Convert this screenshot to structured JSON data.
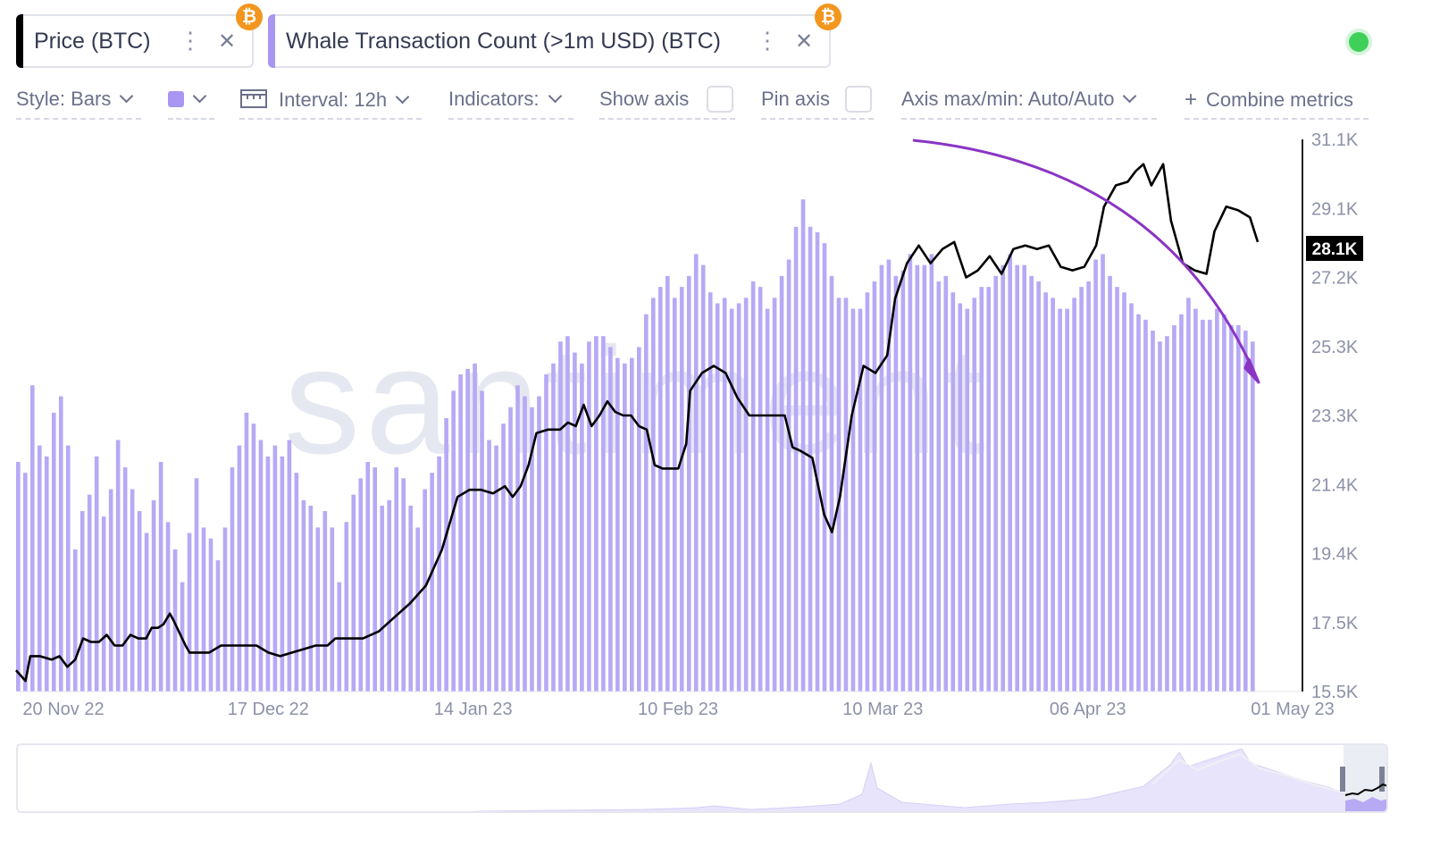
{
  "tabs": [
    {
      "label": "Price (BTC)",
      "color": "#000000"
    },
    {
      "label": "Whale Transaction Count (>1m USD) (BTC)",
      "color": "#a996f2"
    }
  ],
  "toolbar": {
    "style": "Style: Bars",
    "interval": "Interval: 12h",
    "indicators": "Indicators:",
    "show_axis": "Show axis",
    "pin_axis": "Pin axis",
    "axis_maxmin": "Axis max/min: Auto/Auto",
    "combine": "Combine metrics"
  },
  "watermark": "santiment",
  "colors": {
    "bars": "#b8a9f5",
    "price_line": "#000000",
    "arrow": "#8a35c4",
    "status": "#3fd05a"
  },
  "chart_data": {
    "type": "bar",
    "title": "",
    "y_price_ticks": [
      "31.1K",
      "29.1K",
      "27.2K",
      "25.3K",
      "23.3K",
      "21.4K",
      "19.4K",
      "17.5K",
      "15.5K"
    ],
    "y_price_range": [
      15500,
      31100
    ],
    "current_price_label": "28.1K",
    "current_price": 28100,
    "x_tick_labels": [
      "20 Nov 22",
      "17 Dec 22",
      "14 Jan 23",
      "10 Feb 23",
      "10 Mar 23",
      "06 Apr 23",
      "01 May 23"
    ],
    "x_range": [
      "2022-11-14",
      "2023-04-28"
    ],
    "series": [
      {
        "name": "Whale Transaction Count (>1m USD) (BTC)",
        "style": "bars",
        "relative_levels": [
          0.42,
          0.4,
          0.56,
          0.45,
          0.43,
          0.51,
          0.54,
          0.45,
          0.26,
          0.33,
          0.36,
          0.43,
          0.32,
          0.37,
          0.46,
          0.41,
          0.37,
          0.33,
          0.29,
          0.35,
          0.42,
          0.31,
          0.26,
          0.2,
          0.29,
          0.39,
          0.3,
          0.28,
          0.24,
          0.3,
          0.41,
          0.45,
          0.51,
          0.49,
          0.46,
          0.43,
          0.45,
          0.43,
          0.46,
          0.4,
          0.35,
          0.34,
          0.3,
          0.33,
          0.3,
          0.2,
          0.31,
          0.36,
          0.39,
          0.42,
          0.41,
          0.34,
          0.35,
          0.41,
          0.39,
          0.34,
          0.3,
          0.37,
          0.4,
          0.43,
          0.5,
          0.55,
          0.58,
          0.59,
          0.6,
          0.55,
          0.46,
          0.45,
          0.49,
          0.52,
          0.56,
          0.54,
          0.52,
          0.54,
          0.58,
          0.6,
          0.64,
          0.65,
          0.62,
          0.6,
          0.64,
          0.65,
          0.65,
          0.63,
          0.61,
          0.6,
          0.61,
          0.63,
          0.69,
          0.72,
          0.74,
          0.76,
          0.72,
          0.74,
          0.76,
          0.8,
          0.78,
          0.73,
          0.71,
          0.72,
          0.7,
          0.71,
          0.72,
          0.75,
          0.74,
          0.7,
          0.72,
          0.76,
          0.79,
          0.85,
          0.9,
          0.85,
          0.84,
          0.82,
          0.76,
          0.72,
          0.72,
          0.7,
          0.7,
          0.73,
          0.75,
          0.78,
          0.79,
          0.76,
          0.77,
          0.8,
          0.78,
          0.78,
          0.8,
          0.75,
          0.76,
          0.73,
          0.71,
          0.7,
          0.72,
          0.74,
          0.74,
          0.76,
          0.78,
          0.8,
          0.78,
          0.78,
          0.76,
          0.75,
          0.73,
          0.72,
          0.7,
          0.7,
          0.72,
          0.74,
          0.75,
          0.79,
          0.8,
          0.76,
          0.74,
          0.73,
          0.71,
          0.69,
          0.68,
          0.66,
          0.64,
          0.65,
          0.67,
          0.69,
          0.72,
          0.7,
          0.68,
          0.68,
          0.7,
          0.69,
          0.67,
          0.67,
          0.66,
          0.64
        ]
      },
      {
        "name": "Price (BTC)",
        "style": "line"
      }
    ]
  }
}
